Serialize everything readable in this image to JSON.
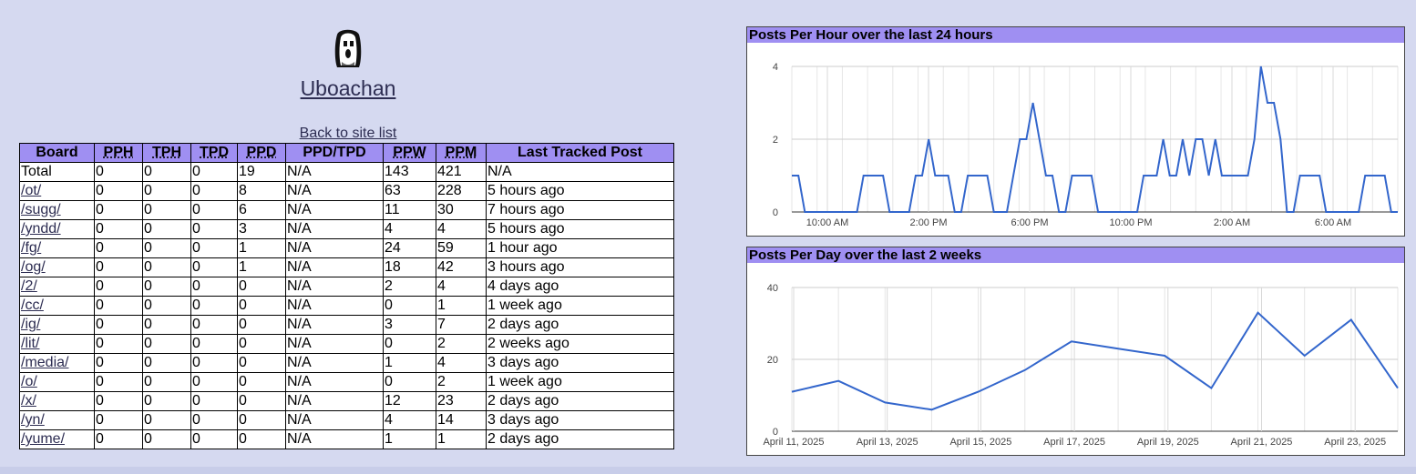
{
  "site": {
    "title": "Uboachan",
    "back_link": "Back to site list"
  },
  "table": {
    "headers": [
      "Board",
      "PPH",
      "TPH",
      "TPD",
      "PPD",
      "PPD/TPD",
      "PPW",
      "PPM",
      "Last Tracked Post"
    ],
    "rows": [
      [
        "Total",
        "0",
        "0",
        "0",
        "19",
        "N/A",
        "143",
        "421",
        "N/A"
      ],
      [
        "/ot/",
        "0",
        "0",
        "0",
        "8",
        "N/A",
        "63",
        "228",
        "5 hours ago"
      ],
      [
        "/sugg/",
        "0",
        "0",
        "0",
        "6",
        "N/A",
        "11",
        "30",
        "7 hours ago"
      ],
      [
        "/yndd/",
        "0",
        "0",
        "0",
        "3",
        "N/A",
        "4",
        "4",
        "5 hours ago"
      ],
      [
        "/fg/",
        "0",
        "0",
        "0",
        "1",
        "N/A",
        "24",
        "59",
        "1 hour ago"
      ],
      [
        "/og/",
        "0",
        "0",
        "0",
        "1",
        "N/A",
        "18",
        "42",
        "3 hours ago"
      ],
      [
        "/2/",
        "0",
        "0",
        "0",
        "0",
        "N/A",
        "2",
        "4",
        "4 days ago"
      ],
      [
        "/cc/",
        "0",
        "0",
        "0",
        "0",
        "N/A",
        "0",
        "1",
        "1 week ago"
      ],
      [
        "/ig/",
        "0",
        "0",
        "0",
        "0",
        "N/A",
        "3",
        "7",
        "2 days ago"
      ],
      [
        "/lit/",
        "0",
        "0",
        "0",
        "0",
        "N/A",
        "0",
        "2",
        "2 weeks ago"
      ],
      [
        "/media/",
        "0",
        "0",
        "0",
        "0",
        "N/A",
        "1",
        "4",
        "3 days ago"
      ],
      [
        "/o/",
        "0",
        "0",
        "0",
        "0",
        "N/A",
        "0",
        "2",
        "1 week ago"
      ],
      [
        "/x/",
        "0",
        "0",
        "0",
        "0",
        "N/A",
        "12",
        "23",
        "2 days ago"
      ],
      [
        "/yn/",
        "0",
        "0",
        "0",
        "0",
        "N/A",
        "4",
        "14",
        "3 days ago"
      ],
      [
        "/yume/",
        "0",
        "0",
        "0",
        "0",
        "N/A",
        "1",
        "1",
        "2 days ago"
      ]
    ]
  },
  "colors": {
    "line": "#3366cc",
    "header": "#9f8ff2",
    "background": "#d5d9f0"
  },
  "chart_data": [
    {
      "type": "line",
      "title": "Posts Per Hour over the last 24 hours",
      "ylim": [
        0,
        4
      ],
      "yticks": [
        0,
        2,
        4
      ],
      "x_tick_labels": [
        "10:00 AM",
        "2:00 PM",
        "6:00 PM",
        "10:00 PM",
        "2:00 AM",
        "6:00 AM"
      ],
      "series": [
        {
          "values": [
            1,
            1,
            0,
            0,
            0,
            0,
            0,
            0,
            0,
            0,
            0,
            1,
            1,
            1,
            1,
            0,
            0,
            0,
            0,
            1,
            1,
            2,
            1,
            1,
            1,
            0,
            0,
            1,
            1,
            1,
            1,
            0,
            0,
            0,
            1,
            2,
            2,
            3,
            2,
            1,
            1,
            0,
            0,
            1,
            1,
            1,
            1,
            0,
            0,
            0,
            0,
            0,
            0,
            0,
            1,
            1,
            1,
            2,
            1,
            1,
            2,
            1,
            2,
            2,
            1,
            2,
            1,
            1,
            1,
            1,
            1,
            2,
            4,
            3,
            3,
            2,
            0,
            0,
            1,
            1,
            1,
            1,
            0,
            0,
            0,
            0,
            0,
            0,
            1,
            1,
            1,
            1,
            0,
            0
          ]
        }
      ]
    },
    {
      "type": "line",
      "title": "Posts Per Day over the last 2 weeks",
      "ylim": [
        0,
        40
      ],
      "yticks": [
        0,
        20,
        40
      ],
      "x_tick_labels": [
        "April 11, 2025",
        "April 13, 2025",
        "April 15, 2025",
        "April 17, 2025",
        "April 19, 2025",
        "April 21, 2025",
        "April 23, 2025"
      ],
      "series": [
        {
          "values": [
            11,
            14,
            8,
            6,
            11,
            17,
            25,
            23,
            21,
            12,
            33,
            21,
            31,
            12
          ]
        }
      ]
    }
  ]
}
